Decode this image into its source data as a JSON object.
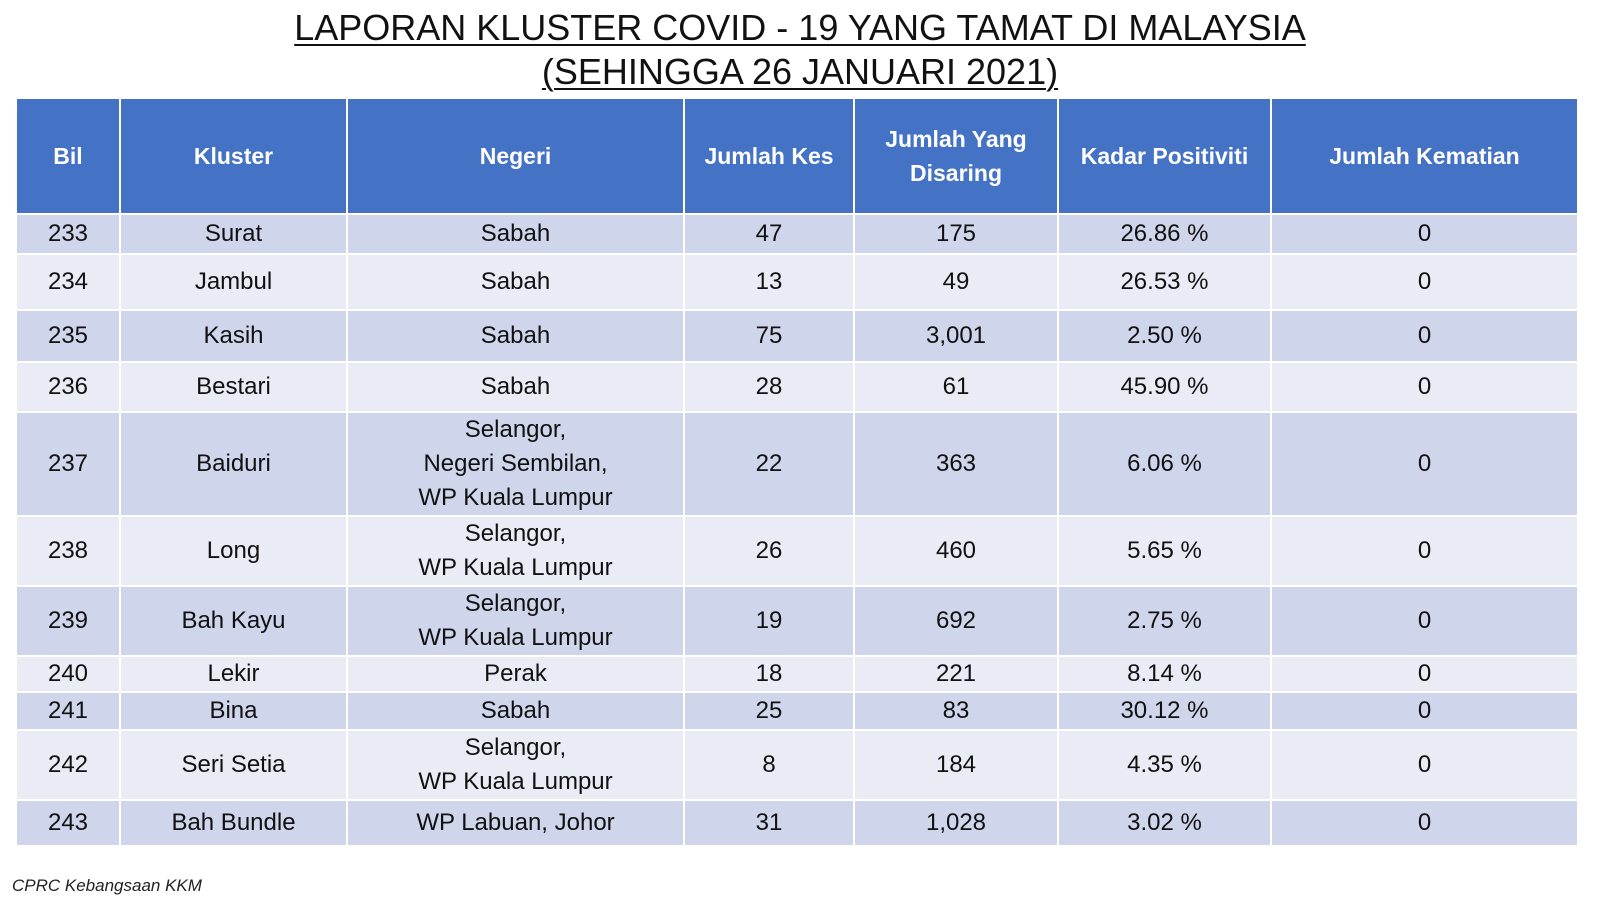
{
  "title": {
    "line1": "LAPORAN KLUSTER COVID - 19 YANG TAMAT DI MALAYSIA",
    "line2": "(SEHINGGA 26 JANUARI 2021)"
  },
  "table": {
    "headers": {
      "bil": "Bil",
      "kluster": "Kluster",
      "negeri": "Negeri",
      "jumlah_kes": "Jumlah Kes",
      "jumlah_disaring": "Jumlah Yang Disaring",
      "kadar_positiviti": "Kadar Positiviti",
      "jumlah_kematian": "Jumlah Kematian"
    },
    "rows": [
      {
        "bil": "233",
        "kluster": "Surat",
        "negeri": [
          "Sabah"
        ],
        "kes": "47",
        "disaring": "175",
        "positiviti": "26.86 %",
        "kematian": "0"
      },
      {
        "bil": "234",
        "kluster": "Jambul",
        "negeri": [
          "Sabah"
        ],
        "kes": "13",
        "disaring": "49",
        "positiviti": "26.53 %",
        "kematian": "0"
      },
      {
        "bil": "235",
        "kluster": "Kasih",
        "negeri": [
          "Sabah"
        ],
        "kes": "75",
        "disaring": "3,001",
        "positiviti": "2.50 %",
        "kematian": "0"
      },
      {
        "bil": "236",
        "kluster": "Bestari",
        "negeri": [
          "Sabah"
        ],
        "kes": "28",
        "disaring": "61",
        "positiviti": "45.90 %",
        "kematian": "0"
      },
      {
        "bil": "237",
        "kluster": "Baiduri",
        "negeri": [
          "Selangor,",
          "Negeri Sembilan,",
          "WP Kuala Lumpur"
        ],
        "kes": "22",
        "disaring": "363",
        "positiviti": "6.06 %",
        "kematian": "0"
      },
      {
        "bil": "238",
        "kluster": "Long",
        "negeri": [
          "Selangor,",
          "WP Kuala Lumpur"
        ],
        "kes": "26",
        "disaring": "460",
        "positiviti": "5.65 %",
        "kematian": "0"
      },
      {
        "bil": "239",
        "kluster": "Bah Kayu",
        "negeri": [
          "Selangor,",
          "WP Kuala Lumpur"
        ],
        "kes": "19",
        "disaring": "692",
        "positiviti": "2.75 %",
        "kematian": "0"
      },
      {
        "bil": "240",
        "kluster": "Lekir",
        "negeri": [
          "Perak"
        ],
        "kes": "18",
        "disaring": "221",
        "positiviti": "8.14 %",
        "kematian": "0"
      },
      {
        "bil": "241",
        "kluster": "Bina",
        "negeri": [
          "Sabah"
        ],
        "kes": "25",
        "disaring": "83",
        "positiviti": "30.12 %",
        "kematian": "0"
      },
      {
        "bil": "242",
        "kluster": "Seri Setia",
        "negeri": [
          "Selangor,",
          "WP Kuala Lumpur"
        ],
        "kes": "8",
        "disaring": "184",
        "positiviti": "4.35 %",
        "kematian": "0"
      },
      {
        "bil": "243",
        "kluster": "Bah Bundle",
        "negeri": [
          "WP Labuan, Johor"
        ],
        "kes": "31",
        "disaring": "1,028",
        "positiviti": "3.02 %",
        "kematian": "0"
      }
    ]
  },
  "footer": "CPRC Kebangsaan KKM",
  "colors": {
    "header_bg": "#4472c4",
    "row_odd_bg": "#cfd5ea",
    "row_even_bg": "#e9ebf5"
  }
}
